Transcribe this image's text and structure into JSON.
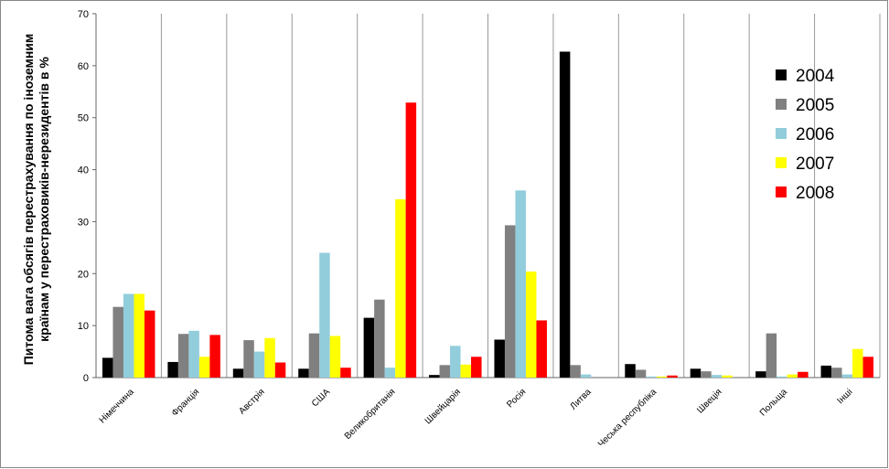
{
  "chart_data": {
    "type": "bar",
    "ylabel": [
      "Питома вага обсягів перестрахування по іноземним",
      "країнам у перестраховиків-нерезидентів в %"
    ],
    "categories": [
      "Німеччина",
      "Франція",
      "Австрія",
      "США",
      "Великобританія",
      "Швейцарія",
      "Росія",
      "Литва",
      "Чеська республіка",
      "Швеція",
      "Польща",
      "Інші"
    ],
    "series": [
      {
        "name": "2004",
        "color": "#000000",
        "values": [
          3.8,
          3.0,
          1.7,
          1.7,
          11.5,
          0.5,
          7.3,
          62.7,
          2.6,
          1.7,
          1.2,
          2.3
        ]
      },
      {
        "name": "2005",
        "color": "#808080",
        "values": [
          13.6,
          8.4,
          7.2,
          8.5,
          15.0,
          2.4,
          29.3,
          2.4,
          1.5,
          1.2,
          8.5,
          1.9
        ]
      },
      {
        "name": "2006",
        "color": "#92cddc",
        "values": [
          16.1,
          9.0,
          5.0,
          24.0,
          1.9,
          6.1,
          36.0,
          0.6,
          0.2,
          0.5,
          0.2,
          0.6
        ]
      },
      {
        "name": "2007",
        "color": "#ffff00",
        "values": [
          16.1,
          4.0,
          7.6,
          8.0,
          34.3,
          2.5,
          20.4,
          0,
          0.2,
          0.4,
          0.6,
          5.5
        ]
      },
      {
        "name": "2008",
        "color": "#ff0000",
        "values": [
          12.9,
          8.2,
          2.9,
          1.9,
          52.9,
          4.0,
          11.0,
          0,
          0.4,
          0,
          1.1,
          4.0
        ]
      }
    ],
    "ylim": [
      0,
      70
    ],
    "yticks": [
      0,
      10,
      20,
      30,
      40,
      50,
      60,
      70
    ],
    "grid": true,
    "legend": "right"
  }
}
